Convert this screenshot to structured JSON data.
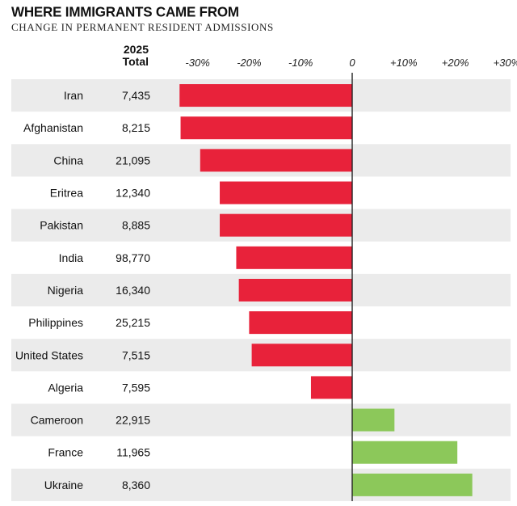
{
  "title": "WHERE IMMIGRANTS CAME FROM",
  "subtitle": "CHANGE IN PERMANENT RESIDENT ADMISSIONS",
  "total_header": {
    "line1": "2025",
    "line2": "Total"
  },
  "chart_data": {
    "type": "bar",
    "orientation": "horizontal",
    "title": "WHERE IMMIGRANTS CAME FROM",
    "subtitle": "CHANGE IN PERMANENT RESIDENT ADMISSIONS",
    "xlim": [
      -33,
      33
    ],
    "ticks": [
      {
        "value": -30,
        "label": "-30%"
      },
      {
        "value": -20,
        "label": "-20%"
      },
      {
        "value": -10,
        "label": "-10%"
      },
      {
        "value": 0,
        "label": "0"
      },
      {
        "value": 10,
        "label": "+10%"
      },
      {
        "value": 20,
        "label": "+20%"
      },
      {
        "value": 30,
        "label": "+30%"
      }
    ],
    "categories": [
      "Iran",
      "Afghanistan",
      "China",
      "Eritrea",
      "Pakistan",
      "India",
      "Nigeria",
      "Philippines",
      "United States",
      "Algeria",
      "Cameroon",
      "France",
      "Ukraine"
    ],
    "totals": [
      "7,435",
      "8,215",
      "21,095",
      "12,340",
      "8,885",
      "98,770",
      "16,340",
      "25,215",
      "7,515",
      "7,595",
      "22,915",
      "11,965",
      "8,360"
    ],
    "values": [
      -33.5,
      -33.3,
      -29.5,
      -25.7,
      -25.7,
      -22.5,
      -22.0,
      -20.0,
      -19.5,
      -8.0,
      8.2,
      20.4,
      23.3
    ],
    "colors": {
      "negative": "#e8223a",
      "positive": "#8cc85a",
      "row_shade": "#ebebeb",
      "zero_line": "#222222"
    }
  }
}
